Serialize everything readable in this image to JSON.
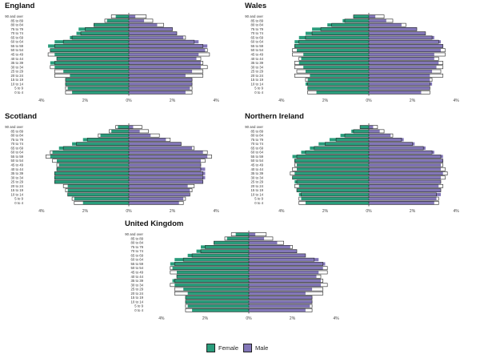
{
  "chart_data": [
    {
      "type": "bar",
      "title": "England",
      "categories": [
        "0 to 4",
        "5 to 9",
        "10 to 14",
        "15 to 19",
        "20 to 24",
        "25 to 29",
        "30 to 34",
        "35 to 39",
        "40 to 44",
        "45 to 49",
        "50 to 54",
        "55 to 59",
        "60 to 64",
        "65 to 69",
        "70 to 74",
        "75 to 79",
        "80 to 84",
        "85 to 89",
        "90 and over"
      ],
      "series": [
        {
          "name": "Female",
          "values": [
            2.6,
            2.8,
            2.9,
            2.9,
            2.7,
            3.0,
            3.4,
            3.6,
            3.3,
            3.4,
            3.6,
            3.7,
            3.4,
            2.7,
            2.4,
            2.3,
            1.6,
            1.0,
            0.6
          ]
        },
        {
          "name": "Male",
          "values": [
            2.6,
            2.8,
            2.9,
            2.9,
            2.6,
            2.9,
            3.3,
            3.3,
            3.1,
            3.2,
            3.5,
            3.6,
            3.2,
            2.5,
            2.2,
            2.0,
            1.3,
            0.7,
            0.3
          ]
        }
      ],
      "outline_values": [
        2.9,
        2.9,
        2.9,
        2.9,
        3.4,
        3.4,
        3.6,
        3.4,
        3.3,
        3.7,
        3.6,
        3.4,
        3.0,
        2.6,
        2.2,
        2.0,
        1.6,
        1.1,
        0.8
      ],
      "xticks": [
        "4%",
        "2%",
        "0%",
        "2%",
        "4%"
      ],
      "xlim": [
        -4.4,
        4.4
      ]
    },
    {
      "type": "bar",
      "title": "Wales",
      "categories": [
        "0 to 4",
        "5 to 9",
        "10 to 14",
        "15 to 19",
        "20 to 24",
        "25 to 29",
        "30 to 34",
        "35 to 39",
        "40 to 44",
        "45 to 49",
        "50 to 54",
        "55 to 59",
        "60 to 64",
        "65 to 69",
        "70 to 74",
        "75 to 79",
        "80 to 84",
        "85 to 89",
        "90 and over"
      ],
      "series": [
        {
          "name": "Female",
          "values": [
            2.4,
            2.8,
            2.9,
            2.8,
            2.7,
            2.9,
            3.0,
            3.2,
            3.1,
            3.0,
            3.3,
            3.4,
            3.4,
            3.2,
            2.9,
            2.6,
            1.9,
            1.2,
            0.7
          ]
        },
        {
          "name": "Male",
          "values": [
            2.4,
            2.8,
            2.9,
            2.8,
            2.8,
            2.9,
            3.1,
            3.2,
            3.0,
            3.0,
            3.3,
            3.4,
            3.3,
            3.0,
            2.6,
            2.2,
            1.5,
            0.8,
            0.3
          ]
        }
      ],
      "outline_values": [
        2.8,
        2.8,
        2.8,
        2.9,
        3.4,
        3.3,
        3.4,
        3.4,
        3.2,
        3.5,
        3.5,
        3.4,
        3.2,
        2.9,
        2.6,
        2.2,
        1.7,
        1.1,
        0.7
      ],
      "xticks": [
        "4%",
        "2%",
        "0%",
        "2%",
        "4%"
      ],
      "xlim": [
        -4.4,
        4.4
      ]
    },
    {
      "type": "bar",
      "title": "Scotland",
      "categories": [
        "0 to 4",
        "5 to 9",
        "10 to 14",
        "15 to 19",
        "20 to 24",
        "25 to 29",
        "30 to 34",
        "35 to 39",
        "40 to 44",
        "45 to 49",
        "50 to 54",
        "55 to 59",
        "60 to 64",
        "65 to 69",
        "70 to 74",
        "75 to 79",
        "80 to 84",
        "85 to 89",
        "90 and over"
      ],
      "series": [
        {
          "name": "Female",
          "values": [
            2.1,
            2.5,
            2.8,
            2.8,
            2.8,
            3.4,
            3.4,
            3.4,
            3.3,
            3.2,
            3.3,
            3.6,
            3.5,
            3.2,
            2.6,
            2.1,
            1.3,
            0.8,
            0.5
          ]
        },
        {
          "name": "Male",
          "values": [
            2.3,
            2.5,
            2.8,
            2.8,
            2.7,
            3.4,
            3.5,
            3.5,
            3.5,
            3.3,
            3.3,
            3.6,
            3.4,
            2.9,
            2.4,
            1.7,
            1.0,
            0.5,
            0.2
          ]
        }
      ],
      "outline_values": [
        2.5,
        2.6,
        2.8,
        2.9,
        3.0,
        3.4,
        3.4,
        3.4,
        3.3,
        3.3,
        3.5,
        3.8,
        3.6,
        3.0,
        2.4,
        1.9,
        1.4,
        0.9,
        0.6
      ],
      "xticks": [
        "4%",
        "2%",
        "0%",
        "2%",
        "4%"
      ],
      "xlim": [
        -4.4,
        4.4
      ]
    },
    {
      "type": "bar",
      "title": "Northern Ireland",
      "categories": [
        "0 to 4",
        "5 to 9",
        "10 to 14",
        "15 to 19",
        "20 to 24",
        "25 to 29",
        "30 to 34",
        "35 to 39",
        "40 to 44",
        "45 to 49",
        "50 to 54",
        "55 to 59",
        "60 to 64",
        "65 to 69",
        "70 to 74",
        "75 to 79",
        "80 to 84",
        "85 to 89",
        "90 and over"
      ],
      "series": [
        {
          "name": "Female",
          "values": [
            2.9,
            3.1,
            3.2,
            3.3,
            3.2,
            3.4,
            3.5,
            3.4,
            3.3,
            3.3,
            3.4,
            3.5,
            3.1,
            2.7,
            2.3,
            1.8,
            1.3,
            0.8,
            0.4
          ]
        },
        {
          "name": "Male",
          "values": [
            3.0,
            3.1,
            3.3,
            3.3,
            3.2,
            3.3,
            3.3,
            3.4,
            3.3,
            3.3,
            3.4,
            3.4,
            3.0,
            2.6,
            2.1,
            1.6,
            1.0,
            0.5,
            0.2
          ]
        }
      ],
      "outline_values": [
        3.2,
        3.2,
        3.1,
        3.3,
        3.4,
        3.3,
        3.5,
        3.6,
        3.5,
        3.4,
        3.4,
        3.3,
        2.9,
        2.5,
        2.0,
        1.5,
        1.1,
        0.7,
        0.4
      ],
      "xticks": [
        "4%",
        "2%",
        "0%",
        "2%",
        "4%"
      ],
      "xlim": [
        -4.4,
        4.4
      ]
    },
    {
      "type": "bar",
      "title": "United Kingdom",
      "categories": [
        "0 to 4",
        "5 to 9",
        "10 to 14",
        "15 to 19",
        "20 to 24",
        "25 to 29",
        "30 to 34",
        "35 to 39",
        "40 to 44",
        "45 to 49",
        "50 to 54",
        "55 to 59",
        "60 to 64",
        "65 to 69",
        "70 to 74",
        "75 to 79",
        "80 to 84",
        "85 to 89",
        "90 and over"
      ],
      "series": [
        {
          "name": "Female",
          "values": [
            2.6,
            2.8,
            2.9,
            2.9,
            2.8,
            3.0,
            3.4,
            3.5,
            3.3,
            3.3,
            3.5,
            3.6,
            3.4,
            2.8,
            2.4,
            2.2,
            1.6,
            1.0,
            0.6
          ]
        },
        {
          "name": "Male",
          "values": [
            2.6,
            2.8,
            2.9,
            2.9,
            2.6,
            2.9,
            3.3,
            3.3,
            3.1,
            3.2,
            3.4,
            3.5,
            3.2,
            2.6,
            2.2,
            1.9,
            1.3,
            0.7,
            0.3
          ]
        }
      ],
      "outline_values": [
        2.9,
        2.9,
        2.9,
        2.9,
        3.4,
        3.4,
        3.6,
        3.4,
        3.3,
        3.6,
        3.6,
        3.4,
        3.0,
        2.6,
        2.2,
        2.0,
        1.6,
        1.1,
        0.8
      ],
      "xticks": [
        "4%",
        "2%",
        "0%",
        "2%",
        "4%"
      ],
      "xlim": [
        -4.4,
        4.4
      ]
    }
  ],
  "legend": {
    "items": [
      {
        "label": "Female",
        "color": "#2a9d7c"
      },
      {
        "label": "Male",
        "color": "#8377b8"
      }
    ]
  },
  "colors": {
    "female": "#2a9d7c",
    "male": "#8377b8",
    "outline": "#222222"
  }
}
